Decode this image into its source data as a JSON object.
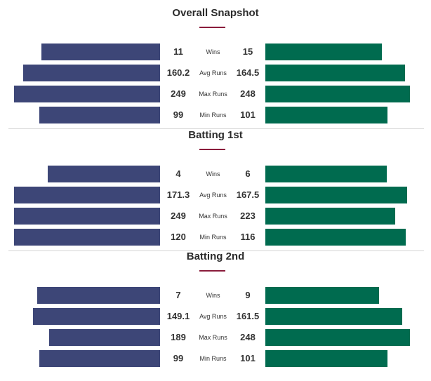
{
  "chart_data": [
    {
      "type": "bar",
      "title": "Overall Snapshot",
      "categories": [
        "Wins",
        "Avg Runs",
        "Max Runs",
        "Min Runs"
      ],
      "series": [
        {
          "values": [
            11,
            160.2,
            249,
            99
          ],
          "labels": [
            "11",
            "160.2",
            "249",
            "99"
          ]
        },
        {
          "values": [
            15,
            164.5,
            248,
            101
          ],
          "labels": [
            "15",
            "164.5",
            "248",
            "101"
          ]
        }
      ]
    },
    {
      "type": "bar",
      "title": "Batting 1st",
      "categories": [
        "Wins",
        "Avg Runs",
        "Max Runs",
        "Min Runs"
      ],
      "series": [
        {
          "values": [
            4,
            171.3,
            249,
            120
          ],
          "labels": [
            "4",
            "171.3",
            "249",
            "120"
          ]
        },
        {
          "values": [
            6,
            167.5,
            223,
            116
          ],
          "labels": [
            "6",
            "167.5",
            "223",
            "116"
          ]
        }
      ]
    },
    {
      "type": "bar",
      "title": "Batting 2nd",
      "categories": [
        "Wins",
        "Avg Runs",
        "Max Runs",
        "Min Runs"
      ],
      "series": [
        {
          "values": [
            7,
            149.1,
            189,
            99
          ],
          "labels": [
            "7",
            "149.1",
            "189",
            "99"
          ]
        },
        {
          "values": [
            9,
            161.5,
            248,
            101
          ],
          "labels": [
            "9",
            "161.5",
            "248",
            "101"
          ]
        }
      ]
    }
  ],
  "colors": {
    "left_team": "#3d4677",
    "right_team": "#006b4f",
    "accent": "#8a1c3c",
    "divider": "#d6d6d6"
  }
}
